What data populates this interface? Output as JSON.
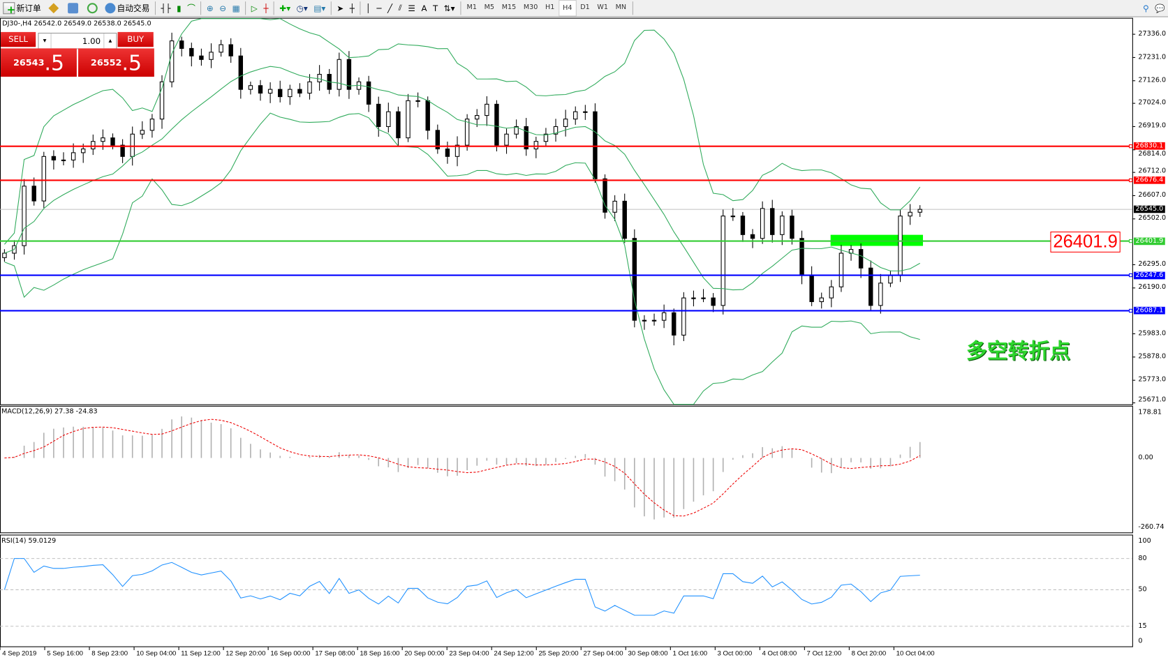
{
  "toolbar": {
    "new_order": "新订单",
    "auto_trading": "自动交易",
    "timeframes": [
      "M1",
      "M5",
      "M15",
      "M30",
      "H1",
      "H4",
      "D1",
      "W1",
      "MN"
    ],
    "active_timeframe": "H4",
    "icons": [
      "new-order-icon",
      "history-icon",
      "terminal-icon",
      "signal-icon",
      "auto-trading-icon",
      "bar-chart-icon",
      "candlestick-icon",
      "line-chart-icon",
      "zoom-in-icon",
      "zoom-out-icon",
      "tile-windows-icon",
      "autoscroll-icon",
      "chart-shift-icon",
      "indicators-icon",
      "periods-icon",
      "templates-icon",
      "cursor-icon",
      "crosshair-icon",
      "vertical-line-icon",
      "horizontal-line-icon",
      "trendline-icon",
      "equidistant-channel-icon",
      "fibonacci-icon",
      "text-icon",
      "text-label-icon",
      "arrows-icon",
      "search-icon",
      "chat-icon"
    ]
  },
  "symbol_header": "DJ30-,H4  26542.0 26549.0 26538.0 26545.0",
  "trade_panel": {
    "sell_label": "SELL",
    "buy_label": "BUY",
    "lot": "1.00",
    "sell_main": "26543",
    "sell_frac": ".5",
    "buy_main": "26552",
    "buy_frac": ".5"
  },
  "levels": [
    {
      "price": 26830.1,
      "label": "26830.1",
      "color": "#ff0000"
    },
    {
      "price": 26676.4,
      "label": "26676.4",
      "color": "#ff0000"
    },
    {
      "price": 26401.9,
      "label": "26401.9",
      "color": "#33cc33"
    },
    {
      "price": 26247.6,
      "label": "26247.6",
      "color": "#0000ff"
    },
    {
      "price": 26087.1,
      "label": "26087.1",
      "color": "#0000ff"
    }
  ],
  "current_price": {
    "price": 26545.0,
    "label": "26545.0"
  },
  "callout": "26401.9",
  "annotation": "多空转折点",
  "chart_data": {
    "type": "candlestick",
    "ylim": [
      25671.0,
      27336.0
    ],
    "price_ticks": [
      "27336.0",
      "27231.0",
      "27126.0",
      "27024.0",
      "26919.0",
      "26814.0",
      "26712.0",
      "26607.0",
      "26502.0",
      "26295.0",
      "26190.0",
      "25983.0",
      "25878.0",
      "25773.0",
      "25671.0"
    ],
    "x_ticks": [
      "4 Sep 2019",
      "5 Sep 16:00",
      "8 Sep 23:00",
      "10 Sep 04:00",
      "11 Sep 12:00",
      "12 Sep 20:00",
      "16 Sep 00:00",
      "17 Sep 08:00",
      "18 Sep 16:00",
      "20 Sep 00:00",
      "23 Sep 04:00",
      "24 Sep 12:00",
      "25 Sep 20:00",
      "27 Sep 04:00",
      "30 Sep 08:00",
      "1 Oct 16:00",
      "3 Oct 00:00",
      "4 Oct 08:00",
      "7 Oct 12:00",
      "8 Oct 20:00",
      "10 Oct 04:00"
    ],
    "closes": [
      26347,
      26381,
      26650,
      26583,
      26784,
      26768,
      26768,
      26801,
      26818,
      26852,
      26868,
      26835,
      26784,
      26885,
      26902,
      26953,
      27121,
      27306,
      27272,
      27238,
      27222,
      27255,
      27289,
      27238,
      27087,
      27104,
      27070,
      27087,
      27054,
      27087,
      27070,
      27121,
      27155,
      27087,
      27222,
      27087,
      27121,
      27020,
      26919,
      26986,
      26868,
      27036,
      27036,
      26902,
      26818,
      26784,
      26835,
      26953,
      26969,
      27020,
      26835,
      26885,
      26919,
      26818,
      26852,
      26885,
      26919,
      26953,
      26986,
      26986,
      26683,
      26532,
      26582,
      26414,
      26044,
      26044,
      26044,
      26078,
      25977,
      26145,
      26145,
      26145,
      26111,
      26515,
      26515,
      26431,
      26414,
      26549,
      26431,
      26515,
      26414,
      26246,
      26128,
      26145,
      26195,
      26347,
      26364,
      26280,
      26111,
      26212,
      26246,
      26515,
      26532,
      26545
    ],
    "zone": {
      "from": 26380,
      "to": 26430
    },
    "macd": {
      "header": "MACD(12,26,9) 27.38 -24.83",
      "ticks": [
        "178.81",
        "0.00",
        "-260.74"
      ],
      "max": 178.81,
      "min": -260.74
    },
    "rsi": {
      "header": "RSI(14) 59.0129",
      "ticks": [
        "100",
        "80",
        "50",
        "15",
        "0"
      ],
      "levels": [
        80,
        50,
        15
      ]
    }
  }
}
